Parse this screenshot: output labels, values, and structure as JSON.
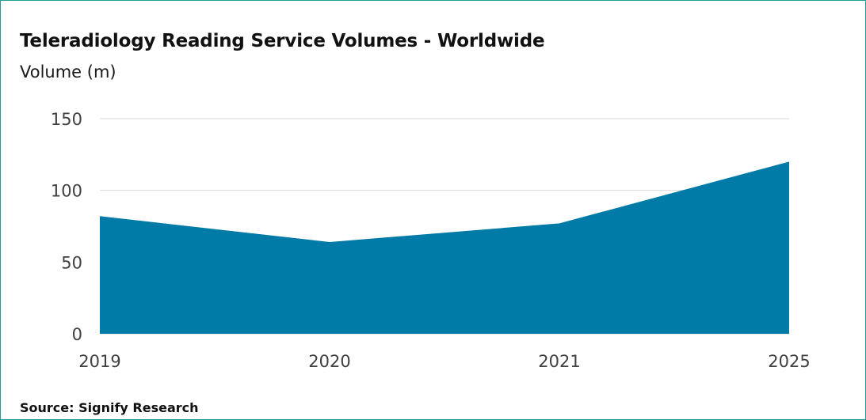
{
  "chart": {
    "title": "Teleradiology Reading Service Volumes - Worldwide",
    "subtitle": "Volume (m)",
    "source": "Source: Signify Research"
  },
  "chart_data": {
    "type": "area",
    "title": "Teleradiology Reading Service Volumes - Worldwide",
    "ylabel": "Volume (m)",
    "xlabel": "",
    "categories": [
      "2019",
      "2020",
      "2021",
      "2025"
    ],
    "values": [
      82,
      64,
      77,
      120
    ],
    "ylim": [
      0,
      150
    ],
    "yticks": [
      0,
      50,
      100,
      150
    ],
    "grid": true,
    "legend": "none",
    "fill_color": "#007ba8",
    "grid_color": "#d9d9d9"
  }
}
